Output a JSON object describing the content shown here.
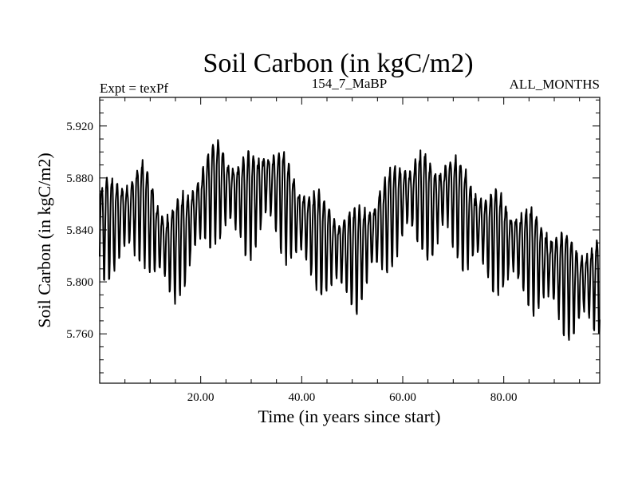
{
  "chart_data": {
    "type": "line",
    "title": "Soil Carbon (in kgC/m2)",
    "subtitle_left": "Expt = texPf",
    "subtitle_center": "154_7_MaBP",
    "subtitle_right": "ALL_MONTHS",
    "xlabel": "Time (in years since start)",
    "ylabel": "Soil Carbon (in kgC/m2)",
    "xlim": [
      0,
      99
    ],
    "ylim": [
      5.722,
      5.942
    ],
    "x_ticks": [
      20,
      40,
      60,
      80
    ],
    "x_tick_labels": [
      "20.00",
      "40.00",
      "60.00",
      "80.00"
    ],
    "y_ticks": [
      5.76,
      5.8,
      5.84,
      5.88,
      5.92
    ],
    "y_tick_labels": [
      "5.760",
      "5.800",
      "5.840",
      "5.880",
      "5.920"
    ],
    "series": [
      {
        "name": "Soil Carbon",
        "sampling": "monthly, years 0-99",
        "annual_cycle": {
          "period_years": 1,
          "amplitude_note": "seasonal oscillation with peak-to-trough of roughly 0.05-0.07 kgC/m2"
        },
        "trend_x": [
          0,
          3,
          6,
          8.5,
          10,
          12,
          14,
          17,
          20,
          23,
          26,
          29,
          31,
          33,
          36,
          40,
          44,
          48,
          51,
          54,
          57,
          60,
          63,
          66,
          69,
          72,
          76,
          80,
          85,
          90,
          94,
          99
        ],
        "trend_y": [
          5.845,
          5.85,
          5.856,
          5.862,
          5.85,
          5.834,
          5.826,
          5.84,
          5.862,
          5.878,
          5.872,
          5.866,
          5.868,
          5.88,
          5.868,
          5.848,
          5.835,
          5.826,
          5.824,
          5.838,
          5.852,
          5.866,
          5.87,
          5.86,
          5.874,
          5.856,
          5.842,
          5.836,
          5.826,
          5.812,
          5.8,
          5.803
        ]
      }
    ]
  }
}
